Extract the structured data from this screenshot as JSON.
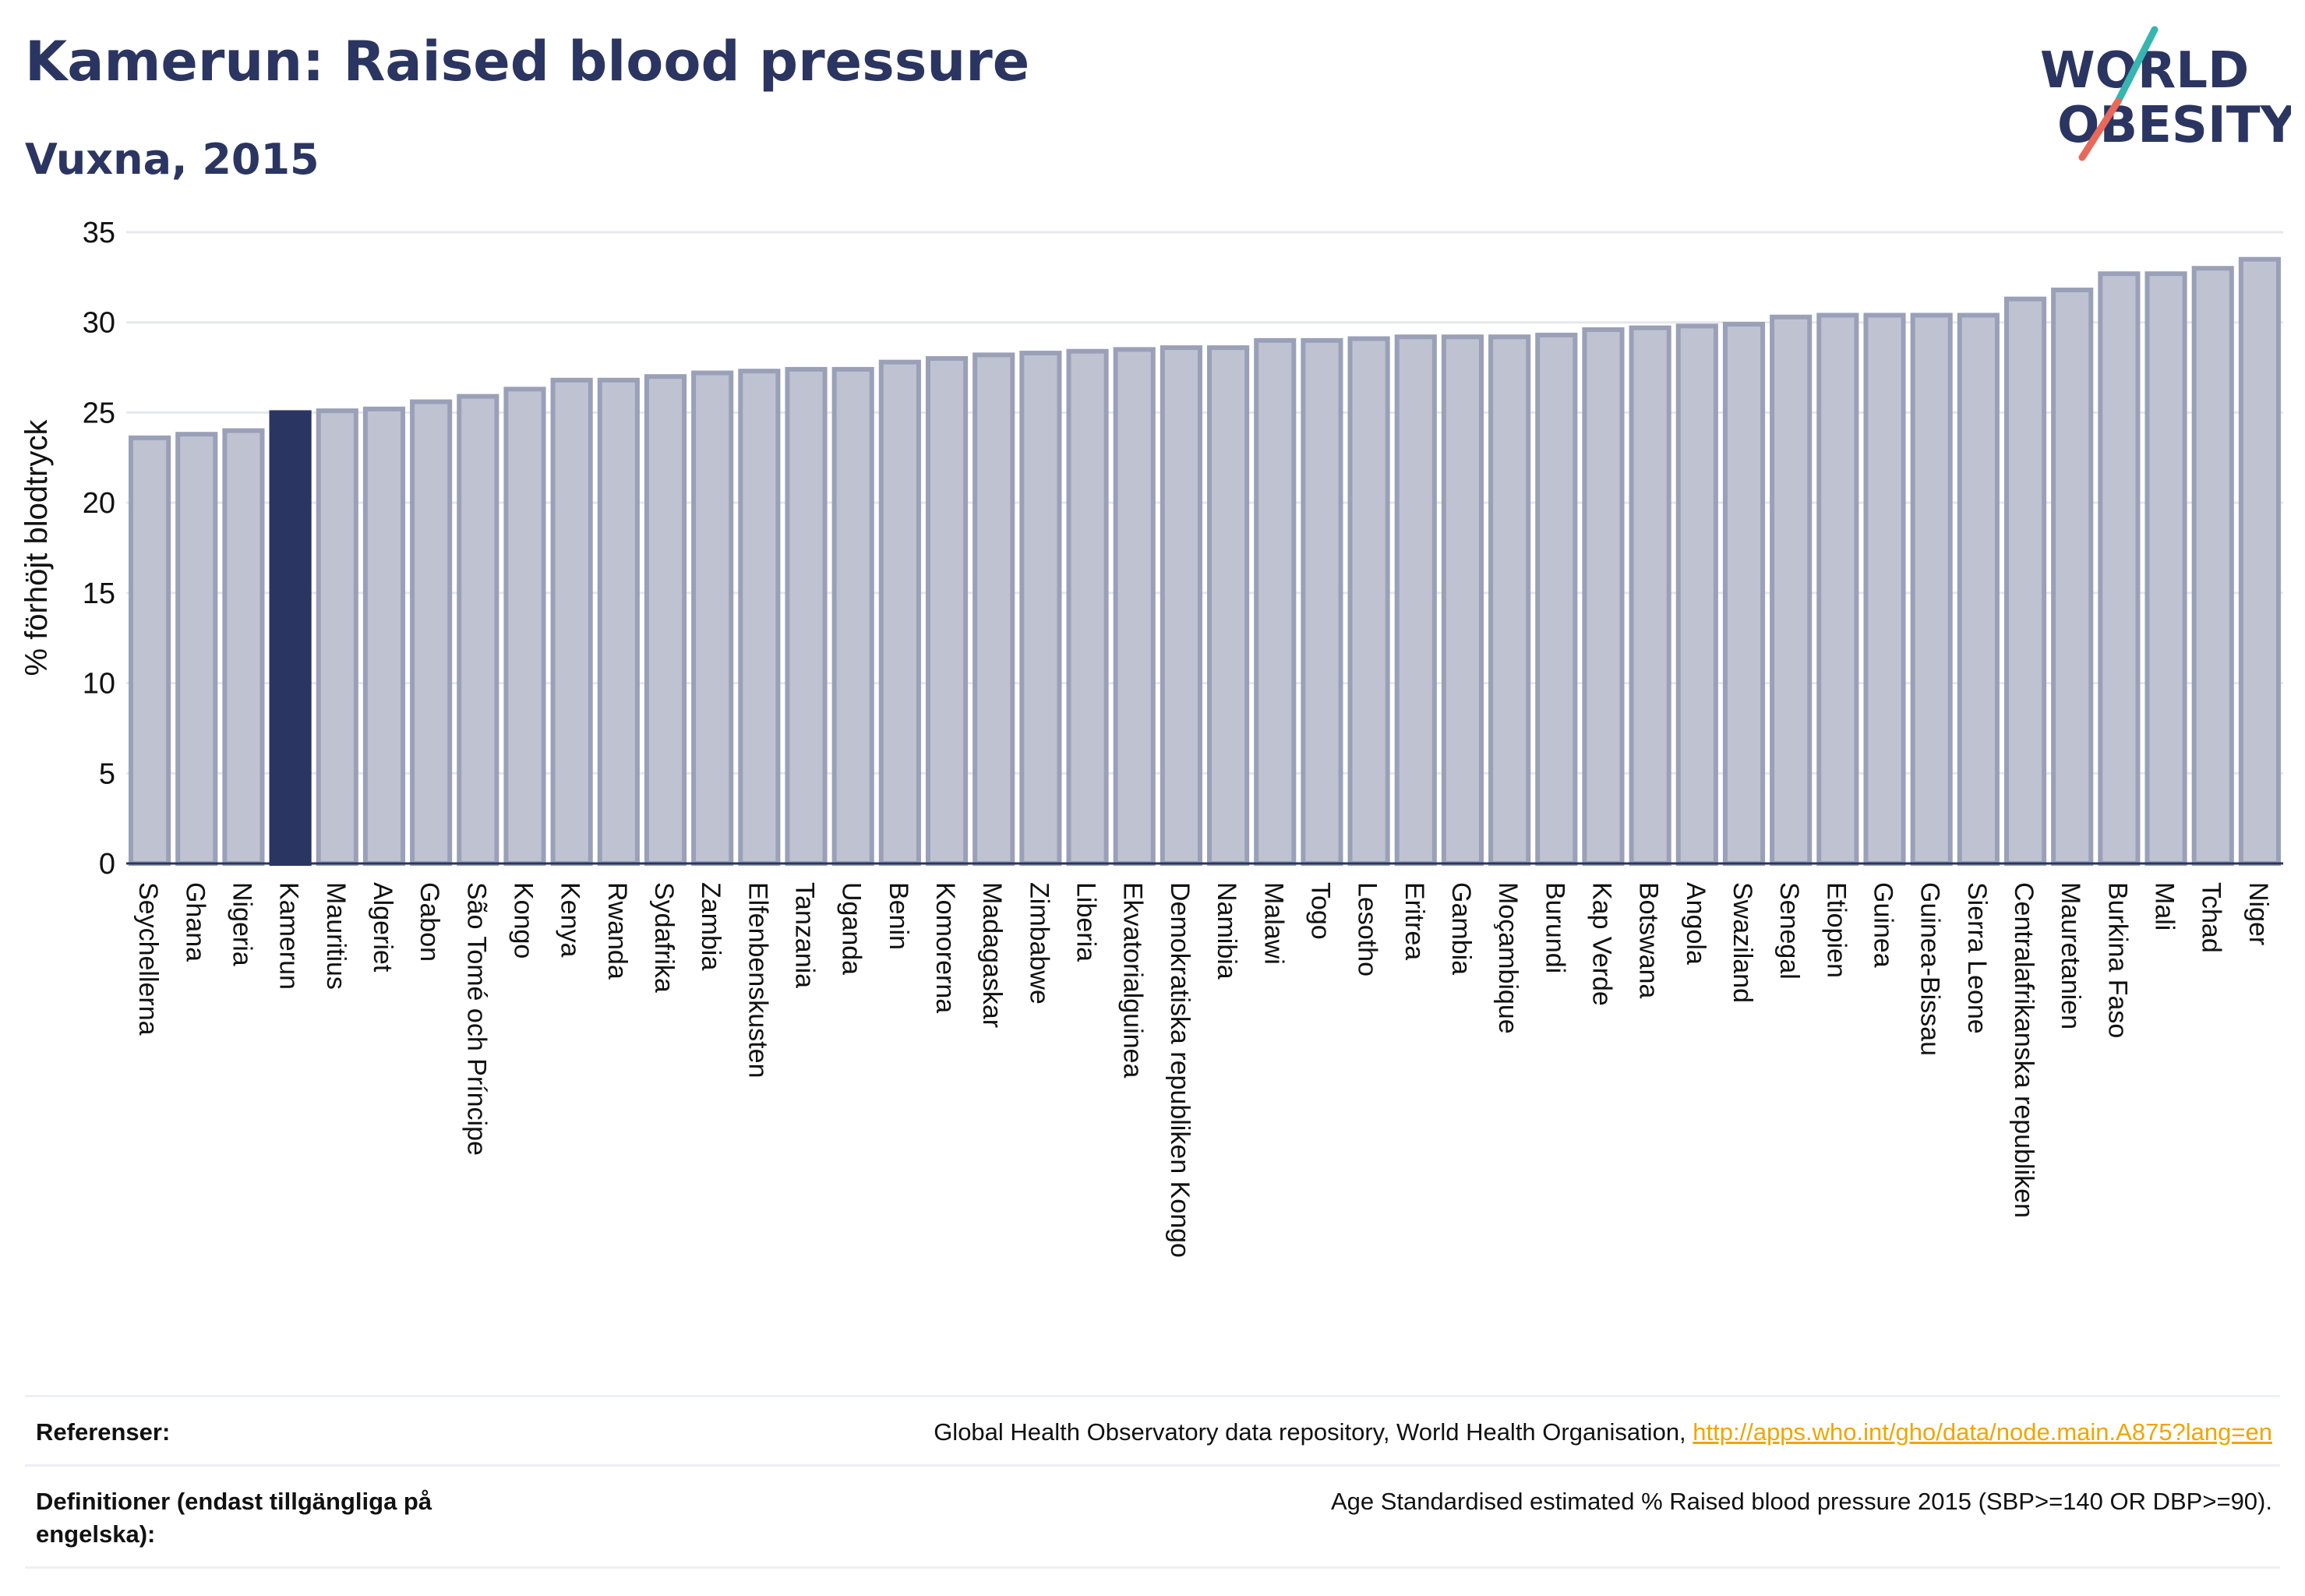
{
  "header": {
    "title": "Kamerun: Raised blood pressure",
    "subtitle": "Vuxna, 2015"
  },
  "logo": {
    "line1": "WORLD",
    "line2": "OBESITY",
    "colors": {
      "text": "#2b3561",
      "slash_top": "#37b5b0",
      "slash_bottom": "#e8685a"
    }
  },
  "chart_data": {
    "type": "bar",
    "ylabel": "% förhöjt blodtryck",
    "xlabel": "",
    "ylim": [
      0,
      35
    ],
    "yticks": [
      0,
      5,
      10,
      15,
      20,
      25,
      30,
      35
    ],
    "grid": true,
    "highlight": "Kamerun",
    "colors": {
      "bar": "#bfc3d1",
      "bar_edge": "#9aa0b8",
      "highlight": "#2b3561",
      "grid": "#e6e8ee",
      "axis": "#2b3561"
    },
    "categories": [
      "Seychellerna",
      "Ghana",
      "Nigeria",
      "Kamerun",
      "Mauritius",
      "Algeriet",
      "Gabon",
      "São Tomé och Príncipe",
      "Kongo",
      "Kenya",
      "Rwanda",
      "Sydafrika",
      "Zambia",
      "Elfenbenskusten",
      "Tanzania",
      "Uganda",
      "Benin",
      "Komorerna",
      "Madagaskar",
      "Zimbabwe",
      "Liberia",
      "Ekvatorialguinea",
      "Demokratiska republiken Kongo",
      "Namibia",
      "Malawi",
      "Togo",
      "Lesotho",
      "Eritrea",
      "Gambia",
      "Moçambique",
      "Burundi",
      "Kap Verde",
      "Botswana",
      "Angola",
      "Swaziland",
      "Senegal",
      "Etiopien",
      "Guinea",
      "Guinea-Bissau",
      "Sierra Leone",
      "Centralafrikanska republiken",
      "Mauretanien",
      "Burkina Faso",
      "Mali",
      "Tchad",
      "Niger"
    ],
    "values": [
      23.6,
      23.8,
      24.0,
      25.0,
      25.1,
      25.2,
      25.6,
      25.9,
      26.3,
      26.8,
      26.8,
      27.0,
      27.2,
      27.3,
      27.4,
      27.4,
      27.8,
      28.0,
      28.2,
      28.3,
      28.4,
      28.5,
      28.6,
      28.6,
      29.0,
      29.0,
      29.1,
      29.2,
      29.2,
      29.2,
      29.3,
      29.6,
      29.7,
      29.8,
      29.9,
      30.3,
      30.4,
      30.4,
      30.4,
      30.4,
      31.3,
      31.8,
      32.7,
      32.7,
      33.0,
      33.5
    ]
  },
  "references": {
    "ref_label": "Referenser:",
    "ref_text": "Global Health Observatory data repository, World Health Organisation, ",
    "ref_link": "http://apps.who.int/gho/data/node.main.A875?lang=en",
    "def_label": "Definitioner (endast tillgängliga på engelska):",
    "def_text": "Age Standardised estimated % Raised blood pressure 2015 (SBP>=140 OR DBP>=90)."
  }
}
